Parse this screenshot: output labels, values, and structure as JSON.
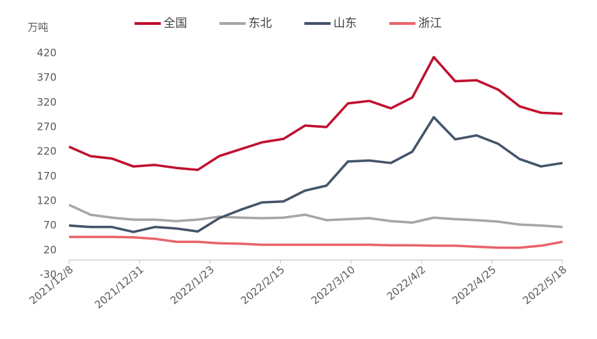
{
  "chart_data": {
    "type": "line",
    "y_label": "万吨",
    "x": [
      "2021/12/8",
      "2021/12/15",
      "2021/12/22",
      "2021/12/29",
      "2022/1/5",
      "2022/1/12",
      "2022/1/19",
      "2022/1/26",
      "2022/2/2",
      "2022/2/9",
      "2022/2/16",
      "2022/2/23",
      "2022/3/2",
      "2022/3/9",
      "2022/3/16",
      "2022/3/23",
      "2022/3/30",
      "2022/4/6",
      "2022/4/13",
      "2022/4/20",
      "2022/4/27",
      "2022/5/4",
      "2022/5/11",
      "2022/5/18"
    ],
    "series": [
      {
        "name": "全国",
        "color": "#c0102e",
        "values": [
          230,
          211,
          206,
          190,
          193,
          187,
          183,
          211,
          225,
          239,
          246,
          273,
          270,
          318,
          323,
          308,
          330,
          412,
          363,
          365,
          346,
          312,
          299,
          297
        ]
      },
      {
        "name": "东北",
        "color": "#a6a6a6",
        "values": [
          112,
          92,
          86,
          82,
          82,
          79,
          82,
          88,
          86,
          85,
          86,
          92,
          81,
          83,
          85,
          79,
          76,
          86,
          83,
          81,
          78,
          72,
          70,
          67
        ]
      },
      {
        "name": "山东",
        "color": "#44546a",
        "values": [
          70,
          67,
          67,
          57,
          67,
          64,
          58,
          85,
          102,
          117,
          119,
          141,
          151,
          200,
          202,
          197,
          220,
          290,
          245,
          253,
          236,
          205,
          190,
          197
        ]
      },
      {
        "name": "浙江",
        "color": "#e8646a",
        "values": [
          47,
          47,
          47,
          46,
          43,
          37,
          37,
          34,
          33,
          31,
          31,
          31,
          31,
          31,
          31,
          30,
          30,
          29,
          29,
          27,
          25,
          25,
          29,
          37
        ]
      }
    ],
    "ylim": [
      -30,
      420
    ],
    "yticks": [
      -30,
      20,
      70,
      120,
      170,
      220,
      270,
      320,
      370,
      420
    ],
    "xticks": [
      "2021/12/8",
      "2021/12/31",
      "2022/1/23",
      "2022/2/15",
      "2022/3/10",
      "2022/4/2",
      "2022/4/25",
      "2022/5/18"
    ]
  }
}
